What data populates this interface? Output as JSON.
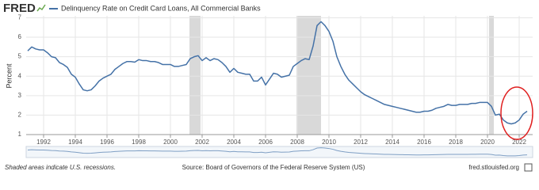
{
  "logo": "FRED",
  "chart_data": {
    "type": "line",
    "title": "Delinquency Rate on Credit Card Loans, All Commercial Banks",
    "y_label": "Percent",
    "x": [
      1991.0,
      1991.25,
      1991.5,
      1991.75,
      1992.0,
      1992.25,
      1992.5,
      1992.75,
      1993.0,
      1993.25,
      1993.5,
      1993.75,
      1994.0,
      1994.25,
      1994.5,
      1994.75,
      1995.0,
      1995.25,
      1995.5,
      1995.75,
      1996.0,
      1996.25,
      1996.5,
      1996.75,
      1997.0,
      1997.25,
      1997.5,
      1997.75,
      1998.0,
      1998.25,
      1998.5,
      1998.75,
      1999.0,
      1999.25,
      1999.5,
      1999.75,
      2000.0,
      2000.25,
      2000.5,
      2000.75,
      2001.0,
      2001.25,
      2001.5,
      2001.75,
      2002.0,
      2002.25,
      2002.5,
      2002.75,
      2003.0,
      2003.25,
      2003.5,
      2003.75,
      2004.0,
      2004.25,
      2004.5,
      2004.75,
      2005.0,
      2005.25,
      2005.5,
      2005.75,
      2006.0,
      2006.25,
      2006.5,
      2006.75,
      2007.0,
      2007.25,
      2007.5,
      2007.75,
      2008.0,
      2008.25,
      2008.5,
      2008.75,
      2009.0,
      2009.25,
      2009.5,
      2009.75,
      2010.0,
      2010.25,
      2010.5,
      2010.75,
      2011.0,
      2011.25,
      2011.5,
      2011.75,
      2012.0,
      2012.25,
      2012.5,
      2012.75,
      2013.0,
      2013.25,
      2013.5,
      2013.75,
      2014.0,
      2014.25,
      2014.5,
      2014.75,
      2015.0,
      2015.25,
      2015.5,
      2015.75,
      2016.0,
      2016.25,
      2016.5,
      2016.75,
      2017.0,
      2017.25,
      2017.5,
      2017.75,
      2018.0,
      2018.25,
      2018.5,
      2018.75,
      2019.0,
      2019.25,
      2019.5,
      2019.75,
      2020.0,
      2020.25,
      2020.5,
      2020.75,
      2021.0,
      2021.25,
      2021.5,
      2021.75,
      2022.0,
      2022.25,
      2022.5
    ],
    "series": [
      {
        "name": "Delinquency Rate on Credit Card Loans, All Commercial Banks",
        "color": "#4572a7",
        "values": [
          5.3,
          5.5,
          5.4,
          5.35,
          5.35,
          5.2,
          5.0,
          4.95,
          4.7,
          4.6,
          4.45,
          4.1,
          3.95,
          3.6,
          3.3,
          3.25,
          3.3,
          3.5,
          3.75,
          3.9,
          4.0,
          4.1,
          4.35,
          4.5,
          4.65,
          4.75,
          4.75,
          4.72,
          4.85,
          4.8,
          4.8,
          4.75,
          4.75,
          4.7,
          4.6,
          4.6,
          4.6,
          4.5,
          4.5,
          4.55,
          4.6,
          4.9,
          5.0,
          5.05,
          4.8,
          4.95,
          4.8,
          4.9,
          4.85,
          4.7,
          4.5,
          4.2,
          4.4,
          4.2,
          4.15,
          4.1,
          4.1,
          3.75,
          3.75,
          3.95,
          3.55,
          3.85,
          4.15,
          4.1,
          3.95,
          4.0,
          4.05,
          4.5,
          4.65,
          4.8,
          4.9,
          4.85,
          5.55,
          6.6,
          6.8,
          6.6,
          6.3,
          5.8,
          5.0,
          4.5,
          4.1,
          3.8,
          3.6,
          3.4,
          3.2,
          3.05,
          2.95,
          2.85,
          2.75,
          2.65,
          2.55,
          2.5,
          2.45,
          2.4,
          2.35,
          2.3,
          2.25,
          2.2,
          2.15,
          2.15,
          2.2,
          2.2,
          2.25,
          2.35,
          2.4,
          2.45,
          2.55,
          2.5,
          2.5,
          2.55,
          2.55,
          2.55,
          2.6,
          2.6,
          2.65,
          2.65,
          2.65,
          2.45,
          2.0,
          2.05,
          1.75,
          1.6,
          1.55,
          1.6,
          1.75,
          2.05,
          2.2
        ]
      }
    ],
    "recessions": [
      [
        2001.2,
        2001.9
      ],
      [
        2007.95,
        2009.5
      ],
      [
        2020.1,
        2020.4
      ]
    ],
    "recession_color": "#d9d9d9",
    "xlim": [
      1990.9,
      2022.85
    ],
    "xticks": [
      1992,
      1994,
      1996,
      1998,
      2000,
      2002,
      2004,
      2006,
      2008,
      2010,
      2012,
      2014,
      2016,
      2018,
      2020,
      2022
    ],
    "ylim": [
      1,
      7.1
    ],
    "yticks": [
      1,
      2,
      3,
      4,
      5,
      6,
      7
    ],
    "grid": true
  },
  "footer": {
    "note": "Shaded areas indicate U.S. recessions.",
    "source": "Source: Board of Governors of the Federal Reserve System (US)",
    "site": "fred.stlouisfed.org"
  }
}
